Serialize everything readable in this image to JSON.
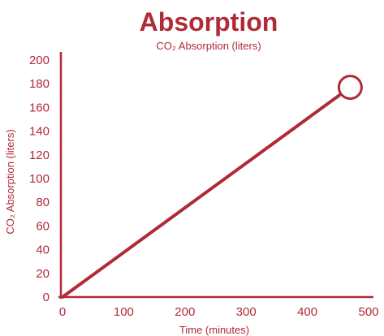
{
  "accent_color": "#b02a37",
  "chart_data": {
    "type": "line",
    "title": "Absorption",
    "subtitle": "CO₂ Absorption (liters)",
    "xlabel": "Time (minutes)",
    "ylabel": "CO₂ Absorption (liters)",
    "xlim": [
      0,
      500
    ],
    "ylim": [
      0,
      200
    ],
    "x_ticks": [
      0,
      100,
      200,
      300,
      400,
      500
    ],
    "y_ticks": [
      0,
      20,
      40,
      60,
      80,
      100,
      120,
      140,
      160,
      180,
      200
    ],
    "grid": false,
    "series": [
      {
        "x": [
          0,
          470
        ],
        "y": [
          0,
          177
        ]
      }
    ],
    "end_marker": {
      "shape": "open-circle",
      "x": 470,
      "y": 177
    }
  }
}
